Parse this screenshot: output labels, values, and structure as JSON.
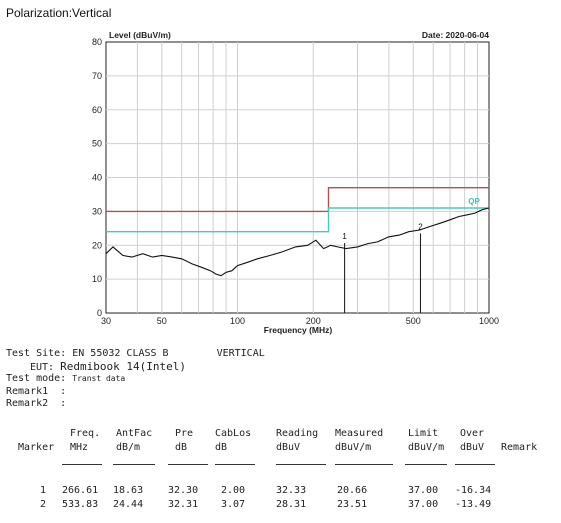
{
  "heading": "Polarization:Vertical",
  "chart_data": {
    "type": "line",
    "ylabel": "Level (dBuV/m)",
    "xlabel": "Frequency (MHz)",
    "date_label": "Date: 2020-06-04",
    "x_scale": "log",
    "xlim": [
      30,
      1000
    ],
    "ylim": [
      0,
      80
    ],
    "x_ticks": [
      "30",
      "50",
      "100",
      "200",
      "500",
      "1000"
    ],
    "y_ticks": [
      "0",
      "10",
      "20",
      "30",
      "40",
      "50",
      "60",
      "70",
      "80"
    ],
    "grid": true,
    "legend": "none",
    "series": [
      {
        "role": "limit-red",
        "color": "#b05050",
        "x": [
          30,
          230,
          230,
          1000
        ],
        "y": [
          30,
          30,
          37,
          37
        ]
      },
      {
        "role": "limit-cyan",
        "color": "#4cc8b8",
        "x": [
          30,
          230,
          230,
          1000
        ],
        "y": [
          24,
          24,
          31,
          31
        ]
      },
      {
        "role": "measurement",
        "color": "#111111",
        "x": [
          30,
          32,
          35,
          38,
          42,
          46,
          50,
          55,
          60,
          66,
          72,
          78,
          82,
          86,
          90,
          95,
          100,
          110,
          120,
          135,
          150,
          170,
          190,
          205,
          220,
          235,
          250,
          270,
          300,
          330,
          360,
          400,
          440,
          480,
          530,
          580,
          640,
          700,
          760,
          820,
          880,
          940,
          1000
        ],
        "y": [
          17.5,
          19.5,
          17,
          16.5,
          17.5,
          16.5,
          17,
          16.5,
          16,
          14.5,
          13.5,
          12.5,
          11.5,
          11,
          12,
          12.5,
          14,
          15,
          16,
          17,
          18,
          19.5,
          20,
          21.5,
          19,
          20,
          19.5,
          19,
          19.5,
          20.5,
          21,
          22.5,
          23,
          24,
          24.5,
          25.5,
          26.5,
          27.5,
          28.5,
          29,
          29.5,
          30.5,
          31
        ]
      }
    ],
    "markers": [
      {
        "label": "1",
        "x": 266.61,
        "y": 20.66
      },
      {
        "label": "2",
        "x": 533.83,
        "y": 23.51
      }
    ],
    "annotation": "QP"
  },
  "info": {
    "test_site_label": "Test Site:",
    "test_site_value": "EN 55032 CLASS B",
    "polarity": "VERTICAL",
    "eut_label": "EUT:",
    "eut_value": "Redmibook 14(Intel)",
    "test_mode_label": "Test mode:",
    "test_mode_value": "Transt data",
    "remark1_label": "Remark1",
    "remark2_label": "Remark2",
    "colon": ":"
  },
  "table": {
    "headers_top": [
      "",
      "Freq.",
      "AntFac",
      "Pre",
      "CabLos",
      "Reading",
      "Measured",
      "Limit",
      "Over",
      ""
    ],
    "headers_bottom": [
      "Marker",
      "MHz",
      "dB/m",
      "dB",
      "dB",
      "dBuV",
      "dBuV/m",
      "dBuV/m",
      "dBuV",
      "Remark"
    ],
    "rows": [
      [
        "1",
        "266.61",
        "18.63",
        "32.30",
        "2.00",
        "32.33",
        "20.66",
        "37.00",
        "-16.34",
        ""
      ],
      [
        "2",
        "533.83",
        "24.44",
        "32.31",
        "3.07",
        "28.31",
        "23.51",
        "37.00",
        "-13.49",
        ""
      ]
    ]
  }
}
